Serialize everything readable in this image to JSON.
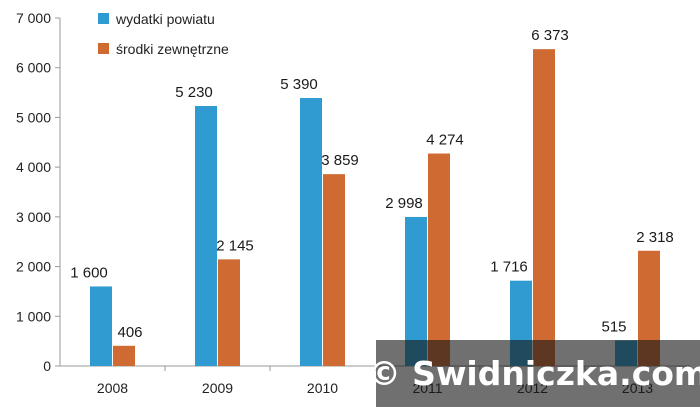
{
  "chart_data": {
    "type": "bar",
    "categories": [
      "2008",
      "2009",
      "2010",
      "2011",
      "2012",
      "2013"
    ],
    "series": [
      {
        "name": "wydatki powiatu",
        "color": "#2f9bd0",
        "values": [
          1600,
          5230,
          5390,
          2998,
          1716,
          515
        ],
        "labels": [
          "1 600",
          "5 230",
          "5 390",
          "2 998",
          "1 716",
          "515"
        ]
      },
      {
        "name": "środki zewnętrzne",
        "color": "#cf6a32",
        "values": [
          406,
          2145,
          3859,
          4274,
          6373,
          2318
        ],
        "labels": [
          "406",
          "2 145",
          "3 859",
          "4 274",
          "6 373",
          "2 318"
        ]
      }
    ],
    "ylim": [
      0,
      7000
    ],
    "yticks": [
      0,
      1000,
      2000,
      3000,
      4000,
      5000,
      6000,
      7000
    ],
    "ytick_labels": [
      "0",
      "1 000",
      "2 000",
      "3 000",
      "4 000",
      "5 000",
      "6 000",
      "7 000"
    ],
    "grid": false,
    "legend_position": "top-left"
  },
  "watermark": {
    "text": "© Swidniczka.com"
  }
}
